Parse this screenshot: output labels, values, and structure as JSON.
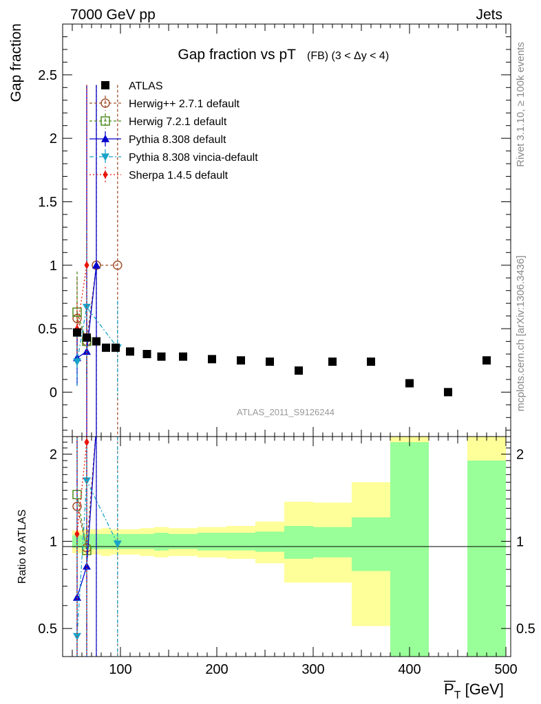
{
  "header": {
    "left": "7000 GeV pp",
    "right": "Jets"
  },
  "title": {
    "main": "Gap fraction vs pT",
    "suffix": "(FB) (3 < Δy < 4)"
  },
  "side_texts": {
    "rivet": "Rivet 3.1.10, ≥ 100k events",
    "mcplots": "mcplots.cern.ch [arXiv:1306.3436]"
  },
  "watermark": "ATLAS_2011_S9126244",
  "axes": {
    "ylabel_top": "Gap fraction",
    "ylabel_bottom": "Ratio to ATLAS",
    "xlabel_main": "P",
    "xlabel_sub": "T",
    "xlabel_unit": " [GeV]"
  },
  "chart_data": {
    "type": "scatter",
    "xlim": [
      40,
      505
    ],
    "ylim": [
      -0.35,
      2.9
    ],
    "ratio_ylim_log": [
      0.4,
      2.3
    ],
    "x_ticks": [
      100,
      200,
      300,
      400,
      500
    ],
    "y_ticks": [
      0,
      0.5,
      1,
      1.5,
      2,
      2.5
    ],
    "ratio_ticks": [
      0.5,
      1,
      2
    ],
    "bin_edges": [
      50,
      60,
      70,
      80,
      90,
      100,
      120,
      135,
      150,
      180,
      210,
      240,
      270,
      300,
      340,
      380,
      420,
      460,
      500
    ],
    "data": {
      "name": "ATLAS",
      "x": [
        55,
        65,
        75,
        85,
        95,
        110,
        127.5,
        142.5,
        165,
        195,
        225,
        255,
        285,
        320,
        360,
        400,
        440,
        480
      ],
      "y": [
        0.47,
        0.43,
        0.4,
        0.35,
        0.35,
        0.32,
        0.3,
        0.28,
        0.28,
        0.26,
        0.25,
        0.24,
        0.17,
        0.24,
        0.24,
        0.07,
        0.0,
        0.25
      ]
    },
    "ratio_band_inner": [
      {
        "x0": 50,
        "x1": 60,
        "lo": 0.95,
        "hi": 1.05
      },
      {
        "x0": 60,
        "x1": 70,
        "lo": 0.94,
        "hi": 1.06
      },
      {
        "x0": 70,
        "x1": 80,
        "lo": 0.94,
        "hi": 1.06
      },
      {
        "x0": 80,
        "x1": 90,
        "lo": 0.94,
        "hi": 1.06
      },
      {
        "x0": 90,
        "x1": 100,
        "lo": 0.94,
        "hi": 1.06
      },
      {
        "x0": 100,
        "x1": 120,
        "lo": 0.94,
        "hi": 1.06
      },
      {
        "x0": 120,
        "x1": 135,
        "lo": 0.94,
        "hi": 1.06
      },
      {
        "x0": 135,
        "x1": 150,
        "lo": 0.93,
        "hi": 1.07
      },
      {
        "x0": 150,
        "x1": 180,
        "lo": 0.94,
        "hi": 1.06
      },
      {
        "x0": 180,
        "x1": 210,
        "lo": 0.93,
        "hi": 1.07
      },
      {
        "x0": 210,
        "x1": 240,
        "lo": 0.93,
        "hi": 1.07
      },
      {
        "x0": 240,
        "x1": 270,
        "lo": 0.92,
        "hi": 1.08
      },
      {
        "x0": 270,
        "x1": 300,
        "lo": 0.87,
        "hi": 1.13
      },
      {
        "x0": 300,
        "x1": 340,
        "lo": 0.88,
        "hi": 1.12
      },
      {
        "x0": 340,
        "x1": 380,
        "lo": 0.79,
        "hi": 1.21
      },
      {
        "x0": 380,
        "x1": 420,
        "lo": 0.4,
        "hi": 2.2
      },
      {
        "x0": 460,
        "x1": 500,
        "lo": 0.4,
        "hi": 1.9
      }
    ],
    "ratio_band_outer": [
      {
        "x0": 50,
        "x1": 60,
        "lo": 0.91,
        "hi": 1.09
      },
      {
        "x0": 60,
        "x1": 70,
        "lo": 0.9,
        "hi": 1.1
      },
      {
        "x0": 70,
        "x1": 80,
        "lo": 0.9,
        "hi": 1.1
      },
      {
        "x0": 80,
        "x1": 90,
        "lo": 0.89,
        "hi": 1.11
      },
      {
        "x0": 90,
        "x1": 100,
        "lo": 0.9,
        "hi": 1.1
      },
      {
        "x0": 100,
        "x1": 120,
        "lo": 0.9,
        "hi": 1.1
      },
      {
        "x0": 120,
        "x1": 135,
        "lo": 0.89,
        "hi": 1.11
      },
      {
        "x0": 135,
        "x1": 150,
        "lo": 0.88,
        "hi": 1.12
      },
      {
        "x0": 150,
        "x1": 180,
        "lo": 0.89,
        "hi": 1.11
      },
      {
        "x0": 180,
        "x1": 210,
        "lo": 0.88,
        "hi": 1.12
      },
      {
        "x0": 210,
        "x1": 240,
        "lo": 0.87,
        "hi": 1.13
      },
      {
        "x0": 240,
        "x1": 270,
        "lo": 0.84,
        "hi": 1.17
      },
      {
        "x0": 270,
        "x1": 300,
        "lo": 0.72,
        "hi": 1.37
      },
      {
        "x0": 300,
        "x1": 340,
        "lo": 0.72,
        "hi": 1.36
      },
      {
        "x0": 340,
        "x1": 380,
        "lo": 0.51,
        "hi": 1.6
      },
      {
        "x0": 380,
        "x1": 420,
        "lo": 0.4,
        "hi": 2.3
      },
      {
        "x0": 460,
        "x1": 500,
        "lo": 0.4,
        "hi": 2.3
      }
    ],
    "series": [
      {
        "name": "Herwig++ 2.7.1 default",
        "color": "#a0522d",
        "marker": "circle-open",
        "dash": "4,3",
        "x": [
          55,
          65,
          75,
          97
        ],
        "y": [
          0.58,
          0.4,
          1.0,
          1.0
        ],
        "err": [
          [
            0.3,
            0.9
          ],
          [
            0.1,
            0.7
          ],
          [
            -0.35,
            2.42
          ],
          [
            -0.35,
            2.42
          ]
        ],
        "ratio": [
          1.32,
          0.95,
          2.5,
          2.9
        ]
      },
      {
        "name": "Herwig 7.2.1 default",
        "color": "#4d8a1e",
        "marker": "square-open",
        "dash": "4,3",
        "x": [
          55,
          65
        ],
        "y": [
          0.63,
          0.4
        ],
        "err": [
          [
            0.3,
            0.95
          ],
          [
            0.1,
            0.7
          ]
        ],
        "ratio": [
          1.45,
          0.93
        ]
      },
      {
        "name": "Pythia 8.308 default",
        "color": "#0000cc",
        "marker": "triangle-up",
        "dash": "",
        "x": [
          55,
          65,
          75
        ],
        "y": [
          0.27,
          0.32,
          1.0
        ],
        "err": [
          [
            0.05,
            0.5
          ],
          [
            -0.35,
            2.42
          ],
          [
            -0.35,
            2.42
          ]
        ],
        "ratio": [
          0.64,
          0.82,
          2.5
        ]
      },
      {
        "name": "Pythia 8.308 vincia-default",
        "color": "#1aa3c8",
        "marker": "triangle-down",
        "dash": "6,3,2,3",
        "x": [
          55,
          65,
          97
        ],
        "y": [
          0.24,
          0.67,
          0.35
        ],
        "err": [
          [
            0.05,
            0.45
          ],
          [
            0.06,
            1.28
          ],
          [
            -0.05,
            0.72
          ]
        ],
        "ratio": [
          0.47,
          1.62,
          0.98
        ]
      },
      {
        "name": "Sherpa 1.4.5 default",
        "color": "#e8160c",
        "marker": "diamond",
        "dash": "2,3",
        "x": [
          55,
          65
        ],
        "y": [
          0.5,
          1.0
        ],
        "err": [
          [
            0.3,
            0.7
          ],
          [
            -0.35,
            2.42
          ]
        ],
        "ratio": [
          1.06,
          2.2
        ]
      }
    ]
  }
}
